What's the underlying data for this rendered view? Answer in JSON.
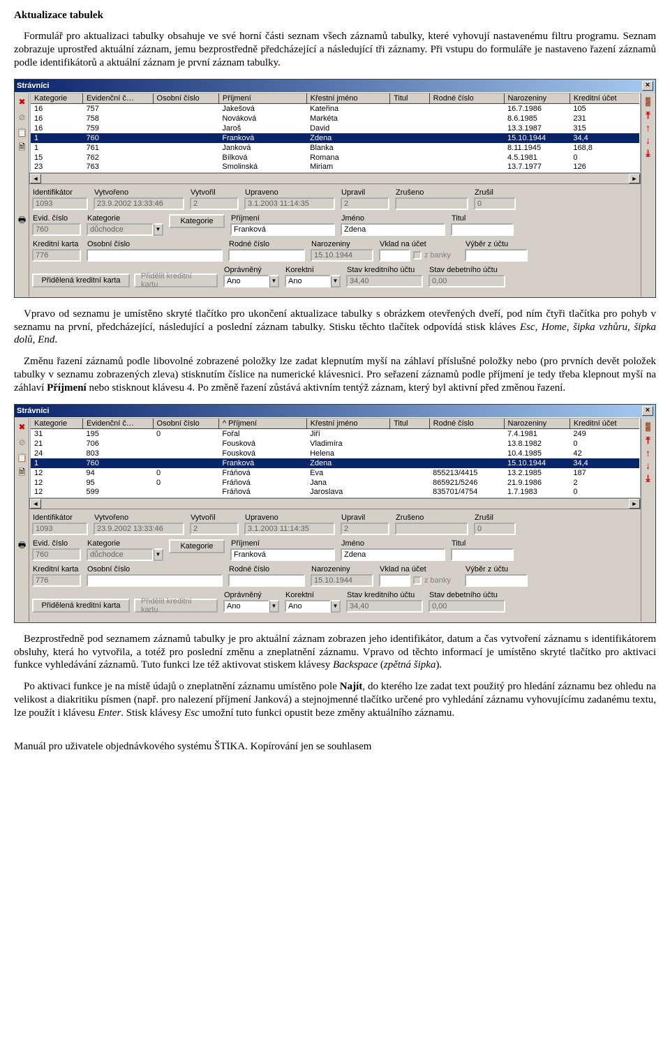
{
  "doc": {
    "heading": "Aktualizace tabulek",
    "p1": "Formulář pro aktualizaci tabulky obsahuje ve své horní části seznam všech záznamů tabulky, které vyhovují nastavenému filtru programu. Seznam zobrazuje uprostřed aktuální záznam, jemu bezprostředně předcházející a následující tři záznamy. Při vstupu do formuláře je nastaveno řazení záznamů podle identifikátorů a aktuální záznam je první záznam tabulky.",
    "p2a": "Vpravo od seznamu je umístěno skryté tlačítko pro ukončení aktualizace tabulky s obrázkem otevřených dveří, pod ním čtyři tlačítka pro pohyb v seznamu na první, předcházející, následující a poslední záznam tabulky. Stisku těchto tlačítek odpovídá stisk kláves ",
    "keys1": "Esc, Home, šipka vzhůru, šipka dolů, End",
    "p2b": ".",
    "p3a": "Změnu řazení záznamů podle libovolné zobrazené položky lze zadat klepnutím myší na záhlaví příslušné položky nebo (pro prvních devět položek tabulky v seznamu zobrazených zleva) stisknutím číslice na numerické klávesnici. Pro seřazení záznamů podle příjmení je tedy třeba klepnout myší na záhlaví ",
    "p3bold": "Příjmení",
    "p3b": " nebo stisknout klávesu 4. Po změně řazení zůstává aktivním tentýž záznam, který byl aktivní před změnou řazení.",
    "p4a": "Bezprostředně pod seznamem záznamů tabulky je pro aktuální záznam zobrazen jeho identifikátor, datum a čas vytvoření záznamu s identifikátorem obsluhy, která ho vytvořila, a totéž pro poslední změnu a zneplatnění záznamu. Vpravo od těchto informací je umístěno skryté tlačítko pro aktivaci funkce vyhledávání záznamů. Tuto funkci lze též aktivovat stiskem klávesy ",
    "p4i1": "Backspace",
    "p4mid": " (",
    "p4i2": "zpětná šipka",
    "p4b": ").",
    "p5a": "Po aktivaci funkce je na místě údajů o zneplatnění záznamu umístěno pole ",
    "p5bold": "Najít",
    "p5b": ", do kterého lze zadat text použitý pro hledání záznamu bez ohledu na velikost a diakritiku písmen (např. pro nalezení příjmení Janková) a stejnojmenné tlačítko určené pro vyhledání záznamu vyhovujícímu zadanému textu, lze použít i klávesu ",
    "p5i": "Enter",
    "p5c": ". Stisk klávesy ",
    "p5i2": "Esc",
    "p5d": " umožní tuto funkci opustit beze změny aktuálního záznamu.",
    "footer": "Manuál pro uživatele objednávkového systému ŠTIKA. Kopírování jen se souhlasem"
  },
  "win": {
    "title": "Strávníci",
    "columns": [
      "Kategorie",
      "Evidenční č…",
      "Osobní číslo",
      "Příjmení",
      "Křestní jméno",
      "Titul",
      "Rodné číslo",
      "Narozeniny",
      "Kreditní účet"
    ],
    "sort_col2": "^ Příjmení",
    "rows1": [
      [
        "16",
        "757",
        "",
        "Jakešová",
        "Kateřina",
        "",
        "",
        "16.7.1986",
        "105"
      ],
      [
        "16",
        "758",
        "",
        "Nováková",
        "Markéta",
        "",
        "",
        "8.6.1985",
        "231"
      ],
      [
        "16",
        "759",
        "",
        "Jaroš",
        "David",
        "",
        "",
        "13.3.1987",
        "315"
      ],
      [
        "1",
        "760",
        "",
        "Franková",
        "Zdena",
        "",
        "",
        "15.10.1944",
        "34,4"
      ],
      [
        "1",
        "761",
        "",
        "Janková",
        "Blanka",
        "",
        "",
        "8.11.1945",
        "168,8"
      ],
      [
        "15",
        "762",
        "",
        "Bílková",
        "Romana",
        "",
        "",
        "4.5.1981",
        "0"
      ],
      [
        "23",
        "763",
        "",
        "Smolinská",
        "Miriam",
        "",
        "",
        "13.7.1977",
        "126"
      ]
    ],
    "rows2": [
      [
        "31",
        "195",
        "0",
        "Fořal",
        "Jiří",
        "",
        "",
        "7.4.1981",
        "249"
      ],
      [
        "21",
        "706",
        "",
        "Fousková",
        "Vladimíra",
        "",
        "",
        "13.8.1982",
        "0"
      ],
      [
        "24",
        "803",
        "",
        "Fousková",
        "Helena",
        "",
        "",
        "10.4.1985",
        "42"
      ],
      [
        "1",
        "760",
        "",
        "Franková",
        "Zdena",
        "",
        "",
        "15.10.1944",
        "34,4"
      ],
      [
        "12",
        "94",
        "0",
        "Fráňová",
        "Eva",
        "",
        "855213/4415",
        "13.2.1985",
        "187"
      ],
      [
        "12",
        "95",
        "0",
        "Fráňová",
        "Jana",
        "",
        "865921/5246",
        "21.9.1986",
        "2"
      ],
      [
        "12",
        "599",
        "",
        "Fráňová",
        "Jaroslava",
        "",
        "835701/4754",
        "1.7.1983",
        "0"
      ]
    ],
    "info_labels": [
      "Identifikátor",
      "Vytvořeno",
      "Vytvořil",
      "Upraveno",
      "Upravil",
      "Zrušeno",
      "Zrušil"
    ],
    "info_values": [
      "1093",
      "23.9.2002 13:33:46",
      "2",
      "3.1.2003 11:14:35",
      "2",
      "",
      "0"
    ],
    "form": {
      "evid_cislo_label": "Evid. číslo",
      "evid_cislo": "760",
      "kategorie_label": "Kategorie",
      "kategorie": "důchodce",
      "kategorie_btn": "Kategorie",
      "prijmeni_label": "Příjmení",
      "prijmeni": "Franková",
      "jmeno_label": "Jméno",
      "jmeno": "Zdena",
      "titul_label": "Titul",
      "titul": "",
      "kredit_label": "Kreditní karta",
      "kredit": "776",
      "osobni_label": "Osobní číslo",
      "osobni": "",
      "rodne_label": "Rodné číslo",
      "rodne": "",
      "naroz_label": "Narozeniny",
      "naroz": "15.10.1944",
      "vklad_label": "Vklad na účet",
      "zbanky": "z banky",
      "vyber_label": "Výběr z účtu",
      "prid_btn": "Přidělená kreditní karta",
      "prid_btn2": "Přidělit kreditní kartu",
      "opravneny_label": "Oprávněný",
      "opravneny": "Ano",
      "korektni_label": "Korektní",
      "korektni": "Ano",
      "stavkred_label": "Stav kreditního účtu",
      "stavkred": "34,40",
      "stavdeb_label": "Stav debetního účtu",
      "stavdeb": "0,00"
    }
  },
  "colors": {
    "titlebar_start": "#0a246a",
    "titlebar_end": "#a6caf0",
    "face": "#d4d0c8",
    "text": "#000000",
    "sel": "#0a246a",
    "arrow": "#c00000"
  }
}
